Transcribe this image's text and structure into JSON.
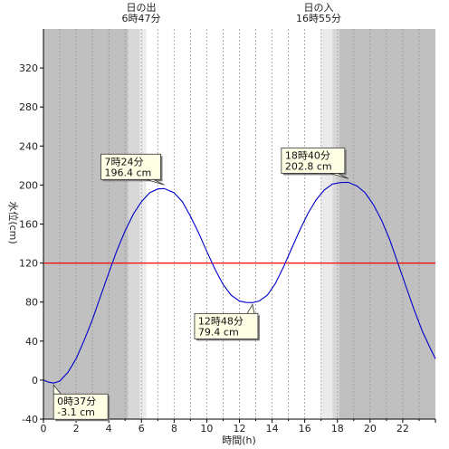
{
  "chart_data": {
    "type": "line",
    "xlabel": "時間(h)",
    "ylabel": "水位(cm)",
    "xlim": [
      0,
      24
    ],
    "ylim": [
      -40,
      360
    ],
    "x_ticks": [
      0,
      2,
      4,
      6,
      8,
      10,
      12,
      14,
      16,
      18,
      20,
      22
    ],
    "y_ticks": [
      -40,
      0,
      40,
      80,
      120,
      160,
      200,
      240,
      280,
      320
    ],
    "grid": "vertical dotted every hour",
    "reference_line": {
      "value": 120,
      "color": "#ff0000"
    },
    "sunrise": {
      "label": "日の出",
      "time_text": "6時47分",
      "hour": 6.78
    },
    "sunset": {
      "label": "日の入",
      "time_text": "16時55分",
      "hour": 16.92
    },
    "shading": [
      {
        "from": 0,
        "to": 5.2,
        "shade": "night",
        "color": "#c0c0c0"
      },
      {
        "from": 5.2,
        "to": 5.9,
        "shade": "twilight",
        "color": "#d8d8d8"
      },
      {
        "from": 5.9,
        "to": 6.3,
        "shade": "dawn",
        "color": "#ebebeb"
      },
      {
        "from": 17.0,
        "to": 17.7,
        "shade": "dusk",
        "color": "#ebebeb"
      },
      {
        "from": 17.7,
        "to": 18.1,
        "shade": "twilight",
        "color": "#d8d8d8"
      },
      {
        "from": 18.1,
        "to": 24,
        "shade": "night",
        "color": "#c0c0c0"
      }
    ],
    "series": [
      {
        "color": "#0000cc",
        "points": [
          [
            0,
            0
          ],
          [
            0.3,
            -2
          ],
          [
            0.62,
            -3.1
          ],
          [
            1,
            -1
          ],
          [
            1.5,
            8
          ],
          [
            2,
            22
          ],
          [
            2.5,
            41
          ],
          [
            3,
            62
          ],
          [
            3.5,
            86
          ],
          [
            4,
            110
          ],
          [
            4.5,
            133
          ],
          [
            5,
            153
          ],
          [
            5.5,
            170
          ],
          [
            6,
            183
          ],
          [
            6.5,
            192
          ],
          [
            7,
            196
          ],
          [
            7.4,
            196.4
          ],
          [
            8,
            192
          ],
          [
            8.5,
            183
          ],
          [
            9,
            168
          ],
          [
            9.5,
            151
          ],
          [
            10,
            132
          ],
          [
            10.5,
            114
          ],
          [
            11,
            98
          ],
          [
            11.5,
            87
          ],
          [
            12,
            81
          ],
          [
            12.4,
            79.6
          ],
          [
            12.8,
            79.4
          ],
          [
            13.2,
            81
          ],
          [
            13.7,
            87
          ],
          [
            14.2,
            99
          ],
          [
            14.7,
            116
          ],
          [
            15.2,
            135
          ],
          [
            15.7,
            154
          ],
          [
            16.2,
            171
          ],
          [
            16.7,
            185
          ],
          [
            17.2,
            195
          ],
          [
            17.7,
            201
          ],
          [
            18.2,
            202.5
          ],
          [
            18.67,
            202.8
          ],
          [
            19.2,
            199
          ],
          [
            19.7,
            192
          ],
          [
            20.2,
            180
          ],
          [
            20.7,
            164
          ],
          [
            21.2,
            144
          ],
          [
            21.7,
            120
          ],
          [
            22.2,
            96
          ],
          [
            22.7,
            72
          ],
          [
            23.2,
            50
          ],
          [
            23.7,
            32
          ],
          [
            24,
            22
          ]
        ]
      }
    ],
    "annotations": [
      {
        "time": "7時24分",
        "value": "196.4 cm",
        "x": 7.4,
        "y": 196.4,
        "box_at": "upper-left"
      },
      {
        "time": "12時48分",
        "value": "79.4 cm",
        "x": 12.8,
        "y": 79.4,
        "box_at": "lower-left"
      },
      {
        "time": "18時40分",
        "value": "202.8 cm",
        "x": 18.67,
        "y": 202.8,
        "box_at": "upper-left"
      },
      {
        "time": "0時37分",
        "value": "-3.1 cm",
        "x": 0.62,
        "y": -3.1,
        "box_at": "lower-right"
      }
    ]
  }
}
